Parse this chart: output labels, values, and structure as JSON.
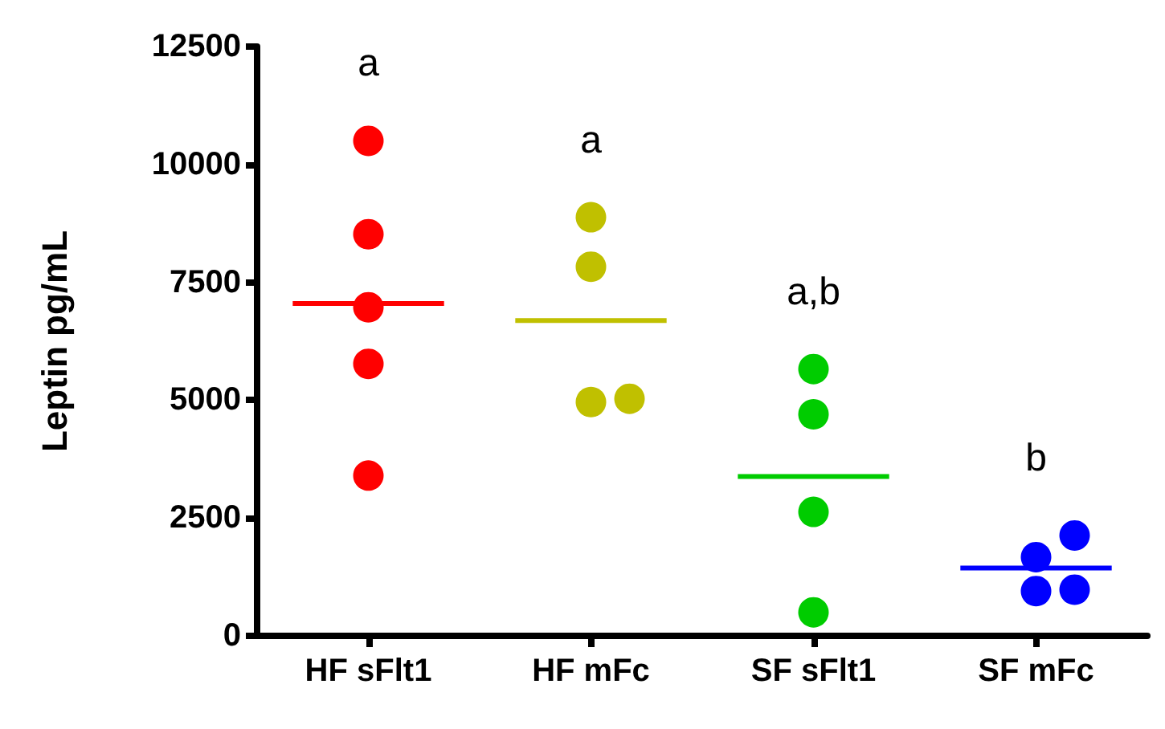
{
  "chart_data": {
    "type": "scatter",
    "ylabel": "Leptin pg/mL",
    "marker": "circle",
    "grid": false,
    "categories": [
      "HF sFlt1",
      "HF mFc",
      "SF sFlt1",
      "SF mFc"
    ],
    "ylim": [
      0,
      12500
    ],
    "yticks": [
      0,
      2500,
      5000,
      7500,
      10000,
      12500
    ],
    "series": [
      {
        "color": "#ff0000",
        "x": [
          "HF sFlt1",
          "HF sFlt1",
          "HF sFlt1",
          "HF sFlt1",
          "HF sFlt1"
        ],
        "values": [
          10500,
          8520,
          6970,
          5770,
          3400
        ]
      },
      {
        "color": "#c0c000",
        "x": [
          "HF mFc",
          "HF mFc",
          "HF mFc",
          "HF mFc"
        ],
        "values": [
          8880,
          7830,
          4960,
          5030
        ]
      },
      {
        "color": "#00cc00",
        "x": [
          "SF sFlt1",
          "SF sFlt1",
          "SF sFlt1",
          "SF sFlt1"
        ],
        "values": [
          5660,
          4700,
          2630,
          500
        ]
      },
      {
        "color": "#0000ff",
        "x": [
          "SF mFc",
          "SF mFc",
          "SF mFc",
          "SF mFc"
        ],
        "values": [
          1670,
          2130,
          950,
          980
        ]
      },
      {
        "type": "box",
        "colors": [
          "#ff0000",
          "#c0c000",
          "#00cc00",
          "#0000ff"
        ],
        "boxes": [
          {
            "low": 7050,
            "q1": 7050,
            "median": 7050,
            "q3": 7050,
            "high": 7050
          },
          {
            "low": 6690,
            "q1": 6690,
            "median": 6690,
            "q3": 6690,
            "high": 6690
          },
          {
            "low": 3380,
            "q1": 3380,
            "median": 3380,
            "q3": 3380,
            "high": 3380
          },
          {
            "low": 1440,
            "q1": 1440,
            "median": 1440,
            "q3": 1440,
            "high": 1440
          }
        ]
      }
    ],
    "annotations": [
      "a",
      "a",
      "a,b",
      "b"
    ]
  }
}
